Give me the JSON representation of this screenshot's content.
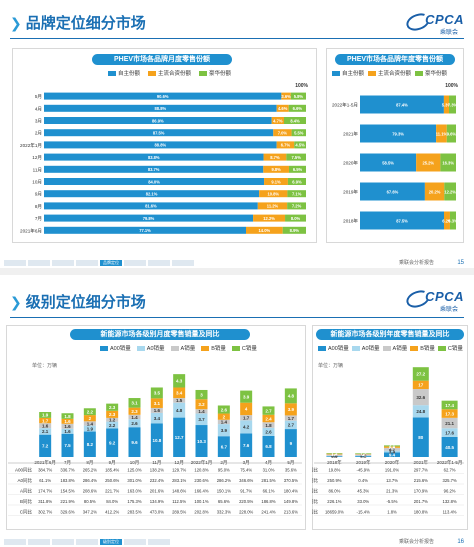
{
  "slide1": {
    "title": "品牌定位细分市场",
    "logo": {
      "brand": "CPCA",
      "sub": "乘联会"
    },
    "footer": {
      "source": "乘联会分析报告",
      "page": "15",
      "active_tab": "品牌定位"
    },
    "colors": {
      "own": "#1f90cf",
      "jv": "#f5a21c",
      "lux": "#7dc242"
    },
    "left_chart_title": "PHEV市场各品牌月度零售份额",
    "right_chart_title": "PHEV市场各品牌年度零售份额",
    "legend": [
      "自主份额",
      "主流合资份额",
      "豪华份额"
    ],
    "hundred": "100%"
  },
  "slide2": {
    "title": "级别定位细分市场",
    "footer": {
      "source": "乘联会分析报告",
      "page": "16",
      "active_tab": "级别定位"
    },
    "colors": {
      "A00": "#1f90cf",
      "A0": "#a8d8ee",
      "A": "#c9c9c9",
      "B": "#f5a21c",
      "C": "#7dc242"
    },
    "left_chart_title": "新能源市场各级别月度零售销量及同比",
    "right_chart_title": "新能源市场各级别年度零售销量及同比",
    "legend": [
      "A00销量",
      "A0销量",
      "A销量",
      "B销量",
      "C销量"
    ],
    "unit": "单位：万辆",
    "yoy_labels": [
      "A00同比",
      "A0同比",
      "A同比",
      "B同比",
      "C同比"
    ]
  },
  "chart_data": [
    {
      "type": "bar",
      "orientation": "horizontal-stacked-100",
      "title": "PHEV市场各品牌月度零售份额",
      "categories": [
        "5月",
        "4月",
        "3月",
        "2月",
        "2022年1月",
        "12月",
        "11月",
        "10月",
        "9月",
        "8月",
        "7月",
        "2021年6月"
      ],
      "series": [
        {
          "name": "自主份额",
          "values": [
            90.6,
            88.8,
            86.9,
            87.5,
            88.8,
            83.8,
            83.7,
            84.0,
            82.1,
            81.6,
            79.8,
            77.1
          ]
        },
        {
          "name": "主流合资份额",
          "values": [
            3.6,
            4.6,
            4.7,
            7.0,
            6.7,
            8.7,
            9.8,
            9.1,
            10.8,
            11.2,
            12.2,
            14.0
          ]
        },
        {
          "name": "豪华份额",
          "values": [
            5.8,
            6.6,
            8.4,
            5.5,
            4.5,
            7.5,
            6.5,
            6.9,
            7.1,
            7.2,
            8.0,
            8.9
          ]
        }
      ]
    },
    {
      "type": "bar",
      "orientation": "horizontal-stacked-100",
      "title": "PHEV市场各品牌年度零售份额",
      "categories": [
        "2022年1-5月",
        "2021年",
        "2020年",
        "2019年",
        "2018年"
      ],
      "series": [
        {
          "name": "自主份额",
          "values": [
            87.4,
            79.3,
            58.5,
            67.6,
            87.5
          ]
        },
        {
          "name": "主流合资份额",
          "values": [
            5.3,
            11.1,
            25.2,
            20.2,
            6.2
          ]
        },
        {
          "name": "豪华份额",
          "values": [
            7.3,
            9.6,
            16.3,
            12.2,
            6.3
          ]
        }
      ]
    },
    {
      "type": "bar",
      "orientation": "vertical-stacked",
      "title": "新能源市场各级别月度零售销量及同比",
      "unit": "万辆",
      "categories": [
        "2021年6月",
        "7月",
        "8月",
        "9月",
        "10月",
        "11月",
        "12月",
        "2022年1月",
        "2月",
        "3月",
        "4月",
        "5月"
      ],
      "series": [
        {
          "name": "A00销量",
          "values": [
            7.2,
            7.5,
            8.2,
            9.2,
            9.6,
            10.8,
            12.7,
            10.3,
            6.7,
            7.6,
            6.8,
            9.0
          ]
        },
        {
          "name": "A0销量",
          "values": [
            2.1,
            1.6,
            1.9,
            2.2,
            2.6,
            3.4,
            4.8,
            3.7,
            3.9,
            4.2,
            2.6,
            2.7
          ]
        },
        {
          "name": "A销量",
          "values": [
            1.6,
            1.6,
            1.4,
            1.2,
            1.4,
            1.6,
            1.5,
            1.4,
            1.4,
            1.7,
            1.8,
            1.7
          ]
        },
        {
          "name": "B销量",
          "values": [
            1.7,
            1.6,
            2.0,
            2.3,
            2.3,
            3.1,
            3.4,
            3.2,
            2.0,
            4.0,
            2.4,
            3.9
          ]
        },
        {
          "name": "C销量",
          "values": [
            1.9,
            1.8,
            2.2,
            2.3,
            3.1,
            3.5,
            4.3,
            3.0,
            2.6,
            3.9,
            2.7,
            4.8
          ]
        }
      ],
      "table": {
        "rows": [
          "A00同比",
          "A0同比",
          "A同比",
          "B同比",
          "C同比"
        ],
        "values": [
          [
            "384.7%",
            "336.7%",
            "265.2%",
            "185.4%",
            "125.0%",
            "138.2%",
            "129.7%",
            "120.8%",
            "95.0%",
            "75.4%",
            "31.0%",
            "35.6%"
          ],
          [
            "61.1%",
            "183.8%",
            "286.4%",
            "250.6%",
            "301.0%",
            "232.4%",
            "283.1%",
            "230.6%",
            "286.2%",
            "346.6%",
            "281.5%",
            "370.5%"
          ],
          [
            "174.7%",
            "154.5%",
            "208.6%",
            "221.7%",
            "163.0%",
            "201.6%",
            "148.6%",
            "166.4%",
            "150.1%",
            "91.7%",
            "66.1%",
            "180.4%"
          ],
          [
            "311.8%",
            "221.9%",
            "80.5%",
            "84.0%",
            "175.3%",
            "134.9%",
            "112.5%",
            "100.1%",
            "65.6%",
            "220.5%",
            "186.8%",
            "149.8%"
          ],
          [
            "302.7%",
            "329.6%",
            "347.2%",
            "412.2%",
            "283.5%",
            "473.0%",
            "289.5%",
            "202.8%",
            "332.3%",
            "228.0%",
            "241.4%",
            "213.6%"
          ]
        ]
      }
    },
    {
      "type": "bar",
      "orientation": "vertical-stacked",
      "title": "新能源市场各级别年度零售销量及同比",
      "unit": "万辆",
      "categories": [
        "2018年",
        "2019年",
        "2020年",
        "2021年",
        "2022年1-5月"
      ],
      "series": [
        {
          "name": "A00销量",
          "values": [
            1.5,
            1.8,
            9.4,
            80.0,
            40.5
          ]
        },
        {
          "name": "A0销量",
          "values": [
            0.9,
            1.2,
            3.4,
            24.8,
            17.6
          ]
        },
        {
          "name": "A销量",
          "values": [
            2.8,
            2.4,
            5.7,
            32.6,
            21.1
          ]
        },
        {
          "name": "B销量",
          "values": [
            1.5,
            1.0,
            2.9,
            17.0,
            17.3
          ]
        },
        {
          "name": "C销量",
          "values": [
            1.2,
            1.2,
            2.1,
            27.2,
            17.4
          ]
        }
      ],
      "table": {
        "rows": [
          "A00同比",
          "A0同比",
          "A同比",
          "B同比",
          "C同比"
        ],
        "values": [
          [
            "19.8%",
            "-45.9%",
            "191.0%",
            "297.7%",
            "62.7%"
          ],
          [
            "250.9%",
            "0.4%",
            "13.7%",
            "215.6%",
            "325.7%"
          ],
          [
            "86.0%",
            "45.3%",
            "21.3%",
            "170.9%",
            "96.2%"
          ],
          [
            "226.1%",
            "33.0%",
            "-5.5%",
            "201.7%",
            "132.8%"
          ],
          [
            "18659.0%",
            "-15.4%",
            "1.8%",
            "180.8%",
            "113.4%"
          ]
        ]
      }
    }
  ]
}
